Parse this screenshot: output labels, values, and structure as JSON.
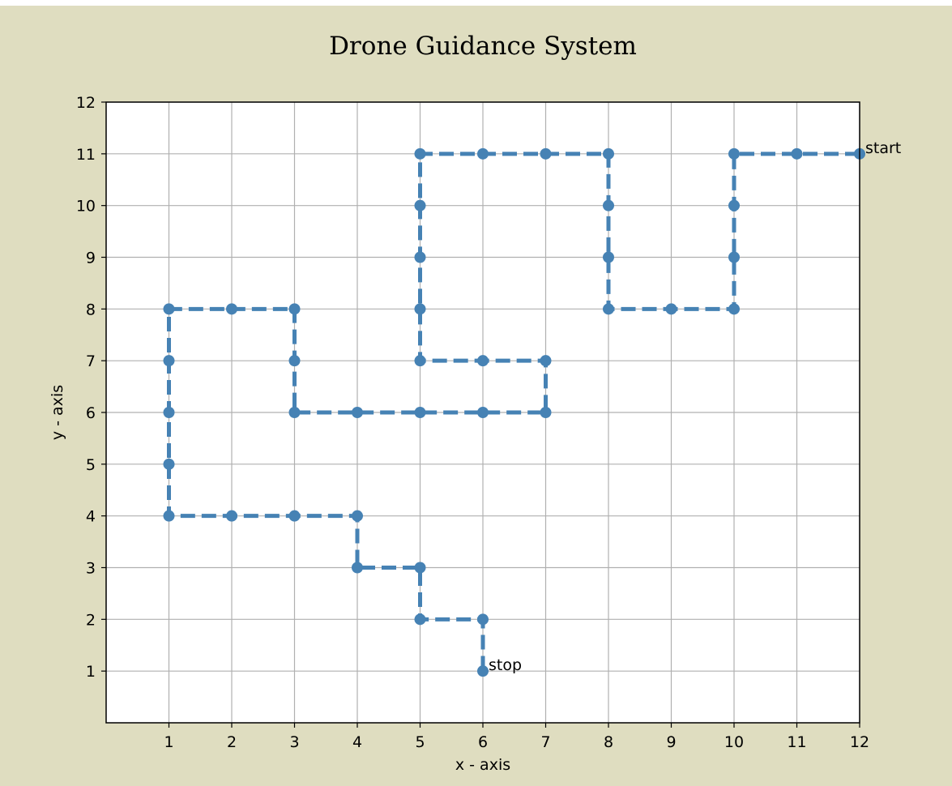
{
  "chart_data": {
    "type": "line",
    "title": "Drone Guidance System",
    "xlabel": "x - axis",
    "ylabel": "y - axis",
    "xlim": [
      0,
      12
    ],
    "ylim": [
      0,
      12
    ],
    "xticks": [
      "1",
      "2",
      "3",
      "4",
      "5",
      "6",
      "7",
      "8",
      "9",
      "10",
      "11",
      "12"
    ],
    "yticks": [
      "1",
      "2",
      "3",
      "4",
      "5",
      "6",
      "7",
      "8",
      "9",
      "10",
      "11",
      "12"
    ],
    "grid": true,
    "line_style": "dashed",
    "marker": "circle",
    "series": [
      {
        "color": "#4682b4",
        "x": [
          12,
          11,
          10,
          10,
          10,
          10,
          9,
          8,
          8,
          8,
          8,
          7,
          6,
          5,
          5,
          5,
          5,
          5,
          6,
          7,
          7,
          6,
          5,
          4,
          3,
          3,
          3,
          2,
          1,
          1,
          1,
          1,
          1,
          2,
          3,
          4,
          4,
          5,
          5,
          6,
          6
        ],
        "y": [
          11,
          11,
          11,
          10,
          9,
          8,
          8,
          8,
          9,
          10,
          11,
          11,
          11,
          11,
          10,
          9,
          8,
          7,
          7,
          7,
          6,
          6,
          6,
          6,
          6,
          7,
          8,
          8,
          8,
          7,
          6,
          5,
          4,
          4,
          4,
          4,
          3,
          3,
          2,
          2,
          1
        ]
      }
    ],
    "annotations": [
      {
        "text": "start",
        "x": 12,
        "y": 11
      },
      {
        "text": "stop",
        "x": 6,
        "y": 1
      }
    ]
  },
  "colors": {
    "figure_background": "#dfddc0",
    "plot_background": "#ffffff",
    "grid": "#b0b0b0",
    "line": "#4682b4"
  }
}
